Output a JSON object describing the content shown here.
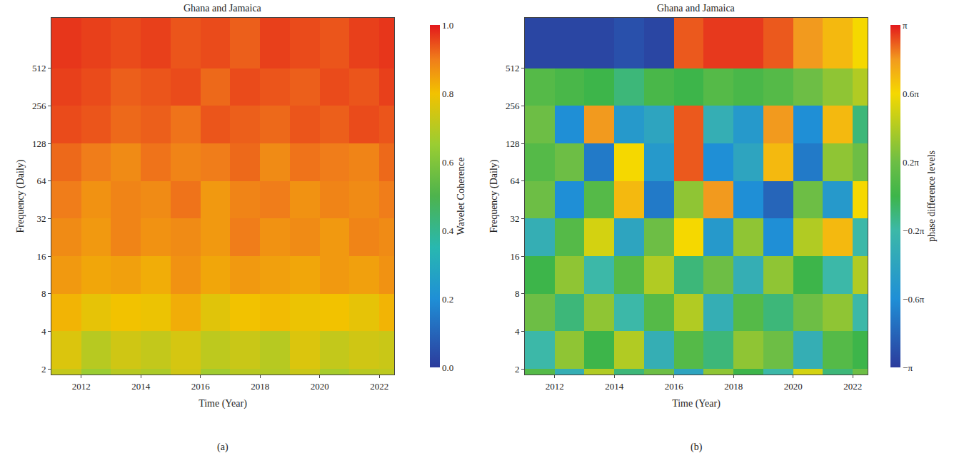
{
  "chart_data": [
    {
      "type": "heatmap",
      "title": "Ghana and Jamaica",
      "panel": "(a)",
      "x_label": "Time (Year)",
      "y_label": "Frequency (Daily)",
      "log": "y",
      "xlim": [
        2011,
        2022.5
      ],
      "xticks": [
        2012,
        2014,
        2016,
        2018,
        2020,
        2022
      ],
      "ylim": [
        1.8,
        1300
      ],
      "yticks": [
        2,
        4,
        8,
        16,
        32,
        64,
        128,
        256,
        512
      ],
      "x_bins": [
        2011,
        2012,
        2013,
        2014,
        2015,
        2016,
        2017,
        2018,
        2019,
        2020,
        2021,
        2022,
        2022.5
      ],
      "y_bins": [
        1.8,
        2,
        4,
        8,
        16,
        32,
        64,
        128,
        256,
        512,
        1300
      ],
      "z": [
        [
          0.72,
          0.65,
          0.7,
          0.68,
          0.74,
          0.66,
          0.7,
          0.69,
          0.73,
          0.67,
          0.7,
          0.71
        ],
        [
          0.76,
          0.7,
          0.74,
          0.72,
          0.75,
          0.71,
          0.73,
          0.7,
          0.76,
          0.72,
          0.74,
          0.73
        ],
        [
          0.82,
          0.78,
          0.8,
          0.79,
          0.83,
          0.77,
          0.8,
          0.81,
          0.79,
          0.8,
          0.78,
          0.82
        ],
        [
          0.86,
          0.84,
          0.85,
          0.83,
          0.87,
          0.84,
          0.86,
          0.85,
          0.84,
          0.86,
          0.85,
          0.87
        ],
        [
          0.88,
          0.86,
          0.89,
          0.87,
          0.88,
          0.86,
          0.9,
          0.87,
          0.88,
          0.86,
          0.89,
          0.88
        ],
        [
          0.9,
          0.87,
          0.89,
          0.88,
          0.91,
          0.86,
          0.89,
          0.9,
          0.87,
          0.89,
          0.88,
          0.9
        ],
        [
          0.92,
          0.9,
          0.88,
          0.91,
          0.89,
          0.9,
          0.92,
          0.88,
          0.91,
          0.9,
          0.89,
          0.92
        ],
        [
          0.95,
          0.94,
          0.92,
          0.93,
          0.91,
          0.94,
          0.93,
          0.92,
          0.94,
          0.93,
          0.95,
          0.94
        ],
        [
          0.96,
          0.95,
          0.93,
          0.94,
          0.95,
          0.92,
          0.95,
          0.94,
          0.93,
          0.95,
          0.94,
          0.96
        ],
        [
          0.97,
          0.96,
          0.95,
          0.96,
          0.94,
          0.95,
          0.93,
          0.96,
          0.95,
          0.94,
          0.96,
          0.97
        ]
      ],
      "colorbar_title": "Wavelet Coherence",
      "zlim": [
        0,
        1
      ],
      "zticks": [
        {
          "value": 0,
          "label": "0.0"
        },
        0.2,
        0.4,
        0.6,
        0.8,
        {
          "value": 1,
          "label": "1.0"
        }
      ]
    },
    {
      "type": "heatmap",
      "title": "Ghana and Jamaica",
      "panel": "(b)",
      "x_label": "Time (Year)",
      "y_label": "Frequency (Daily)",
      "log": "y",
      "xlim": [
        2011,
        2022.5
      ],
      "xticks": [
        2012,
        2014,
        2016,
        2018,
        2020,
        2022
      ],
      "ylim": [
        1.8,
        1300
      ],
      "yticks": [
        2,
        4,
        8,
        16,
        32,
        64,
        128,
        256,
        512
      ],
      "x_bins": [
        2011,
        2012,
        2013,
        2014,
        2015,
        2016,
        2017,
        2018,
        2019,
        2020,
        2021,
        2022,
        2022.5
      ],
      "y_bins": [
        1.8,
        2,
        4,
        8,
        16,
        32,
        64,
        128,
        256,
        512,
        1300
      ],
      "z": [
        [
          0.1,
          -0.3,
          0.4,
          -0.1,
          0.2,
          -0.4,
          0.3,
          0,
          -0.2,
          0.5,
          -0.1,
          0.2
        ],
        [
          -0.2,
          0.3,
          0,
          0.4,
          -0.3,
          0.1,
          -0.1,
          0.3,
          0.2,
          -0.3,
          0.1,
          0
        ],
        [
          0.2,
          -0.1,
          0.3,
          -0.2,
          0.1,
          0.4,
          -0.3,
          0.1,
          -0.1,
          0.2,
          0.3,
          -0.2
        ],
        [
          0,
          0.3,
          -0.2,
          0.1,
          0.4,
          -0.1,
          0.2,
          -0.3,
          0.3,
          0,
          -0.2,
          0.4
        ],
        [
          -0.3,
          0.1,
          0.5,
          -0.4,
          0.2,
          0.6,
          -0.5,
          0.3,
          -0.6,
          0.4,
          0.7,
          -0.2
        ],
        [
          0.2,
          -0.6,
          0.1,
          0.7,
          -0.7,
          0.3,
          0.8,
          -0.6,
          -0.8,
          0.2,
          -0.5,
          0.6
        ],
        [
          0.1,
          0.2,
          -0.7,
          0.6,
          -0.5,
          0.9,
          -0.6,
          -0.4,
          0.7,
          -0.7,
          0.3,
          0.2
        ],
        [
          0.2,
          -0.6,
          0.8,
          -0.5,
          -0.4,
          0.9,
          -0.3,
          -0.5,
          0.8,
          -0.6,
          0.7,
          -0.1
        ],
        [
          0.1,
          0.05,
          0,
          -0.1,
          0.05,
          0,
          0.1,
          0.05,
          0.1,
          0.2,
          0.3,
          0.4
        ],
        [
          -0.95,
          -0.95,
          -0.95,
          -0.9,
          -0.95,
          0.9,
          0.95,
          0.95,
          0.9,
          0.8,
          0.7,
          0.6
        ]
      ],
      "colorbar_title": "phase difference levels",
      "zlim": [
        -1,
        1
      ],
      "zticks": [
        {
          "value": 1,
          "label": "π"
        },
        {
          "value": 0.6,
          "label": "0.6π"
        },
        {
          "value": 0.2,
          "label": "0.2π"
        },
        {
          "value": -0.2,
          "label": "−0.2π"
        },
        {
          "value": -0.6,
          "label": "−0.6π"
        },
        {
          "value": -1,
          "label": "−π"
        }
      ]
    }
  ]
}
